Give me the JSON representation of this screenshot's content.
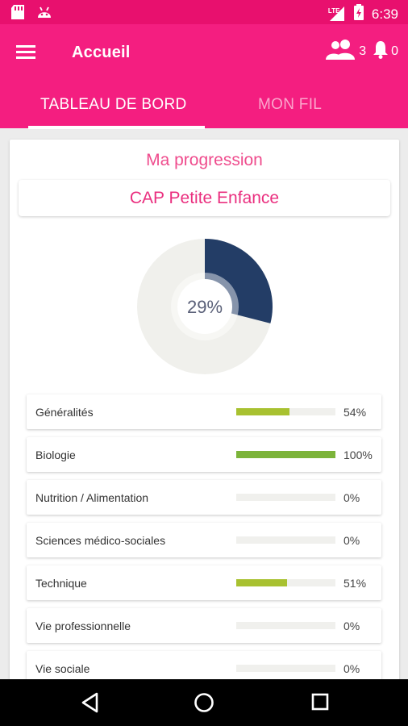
{
  "status_bar": {
    "time": "6:39",
    "network": "LTE"
  },
  "app_bar": {
    "title": "Accueil",
    "contacts_count": "3",
    "notifications_count": "0"
  },
  "tabs": [
    {
      "label": "TABLEAU DE BORD",
      "active": true
    },
    {
      "label": "MON FIL",
      "active": false
    }
  ],
  "progress": {
    "heading": "Ma progression",
    "course": "CAP Petite Enfance",
    "overall_label": "29%",
    "overall_fraction": 0.29,
    "subjects": [
      {
        "name": "Généralités",
        "percent_label": "54%",
        "fraction": 0.54,
        "color": "#a8c130"
      },
      {
        "name": "Biologie",
        "percent_label": "100%",
        "fraction": 1.0,
        "color": "#7cb43a"
      },
      {
        "name": "Nutrition / Alimentation",
        "percent_label": "0%",
        "fraction": 0,
        "color": "#a8c130"
      },
      {
        "name": "Sciences médico-sociales",
        "percent_label": "0%",
        "fraction": 0,
        "color": "#a8c130"
      },
      {
        "name": "Technique",
        "percent_label": "51%",
        "fraction": 0.51,
        "color": "#a8c130"
      },
      {
        "name": "Vie professionnelle",
        "percent_label": "0%",
        "fraction": 0,
        "color": "#a8c130"
      },
      {
        "name": "Vie sociale",
        "percent_label": "0%",
        "fraction": 0,
        "color": "#a8c130"
      }
    ]
  },
  "colors": {
    "primary": "#f41e80",
    "status_bar": "#e8106e",
    "accent_text": "#ef4c8d",
    "donut_fill": "#233d66",
    "donut_track": "#f0f0ec"
  },
  "icons": {
    "menu": "hamburger-menu-icon",
    "contacts": "people-icon",
    "notifications": "bell-icon",
    "back": "back-triangle-icon",
    "home": "home-circle-icon",
    "recents": "recents-square-icon"
  }
}
